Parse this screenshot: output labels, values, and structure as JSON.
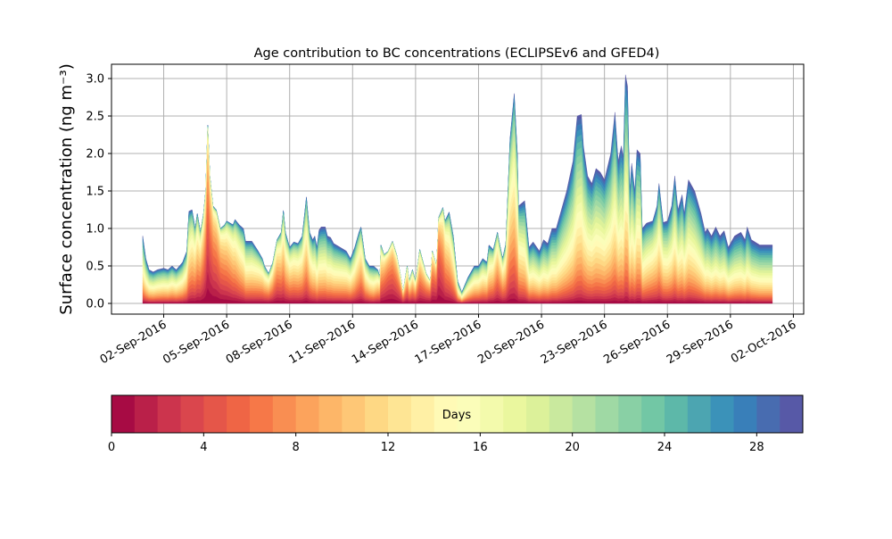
{
  "chart_data": {
    "type": "area",
    "stacked": true,
    "title": "Age contribution to BC concentrations (ECLIPSEv6 and GFED4)",
    "ylabel": "Surface concentration (ng m⁻³)",
    "xlabel": "",
    "x_units": "days since 01-Sep-2016 00:00",
    "xlim": [
      -1.5,
      31.3
    ],
    "ylim": [
      -0.15,
      3.2
    ],
    "yticks": [
      0.0,
      0.5,
      1.0,
      1.5,
      2.0,
      2.5,
      3.0
    ],
    "ytick_labels": [
      "0.0",
      "0.5",
      "1.0",
      "1.5",
      "2.0",
      "2.5",
      "3.0"
    ],
    "xticks": [
      1,
      4,
      7,
      10,
      13,
      16,
      19,
      22,
      25,
      28,
      31
    ],
    "xtick_labels": [
      "02-Sep-2016",
      "05-Sep-2016",
      "08-Sep-2016",
      "11-Sep-2016",
      "14-Sep-2016",
      "17-Sep-2016",
      "20-Sep-2016",
      "23-Sep-2016",
      "26-Sep-2016",
      "29-Sep-2016",
      "02-Oct-2016"
    ],
    "grid": true,
    "series_note": "30 stacked age classes (0-29 days), Spectral colormap",
    "n_age_classes": 30,
    "total": [
      [
        0,
        0.9
      ],
      [
        0.15,
        0.6
      ],
      [
        0.3,
        0.45
      ],
      [
        0.5,
        0.42
      ],
      [
        0.7,
        0.45
      ],
      [
        1.0,
        0.47
      ],
      [
        1.2,
        0.45
      ],
      [
        1.4,
        0.5
      ],
      [
        1.6,
        0.45
      ],
      [
        1.9,
        0.55
      ],
      [
        2.1,
        0.7
      ],
      [
        2.2,
        1.23
      ],
      [
        2.35,
        1.25
      ],
      [
        2.5,
        1.0
      ],
      [
        2.6,
        1.2
      ],
      [
        2.75,
        0.95
      ],
      [
        2.9,
        1.2
      ],
      [
        3.0,
        1.5
      ],
      [
        3.1,
        2.38
      ],
      [
        3.2,
        1.7
      ],
      [
        3.35,
        1.3
      ],
      [
        3.5,
        1.25
      ],
      [
        3.7,
        1.0
      ],
      [
        3.9,
        1.05
      ],
      [
        4.0,
        1.1
      ],
      [
        4.3,
        1.05
      ],
      [
        4.4,
        1.12
      ],
      [
        4.6,
        1.05
      ],
      [
        4.8,
        1.0
      ],
      [
        4.9,
        0.83
      ],
      [
        5.2,
        0.83
      ],
      [
        5.5,
        0.7
      ],
      [
        5.7,
        0.6
      ],
      [
        5.8,
        0.5
      ],
      [
        6.0,
        0.4
      ],
      [
        6.2,
        0.55
      ],
      [
        6.4,
        0.85
      ],
      [
        6.6,
        0.95
      ],
      [
        6.7,
        1.24
      ],
      [
        6.8,
        0.95
      ],
      [
        7.0,
        0.75
      ],
      [
        7.2,
        0.82
      ],
      [
        7.4,
        0.8
      ],
      [
        7.6,
        0.9
      ],
      [
        7.8,
        1.42
      ],
      [
        7.95,
        0.95
      ],
      [
        8.1,
        0.85
      ],
      [
        8.2,
        0.9
      ],
      [
        8.3,
        0.75
      ],
      [
        8.4,
        0.98
      ],
      [
        8.5,
        1.02
      ],
      [
        8.7,
        1.02
      ],
      [
        8.8,
        0.9
      ],
      [
        8.95,
        0.88
      ],
      [
        9.1,
        0.8
      ],
      [
        9.4,
        0.75
      ],
      [
        9.7,
        0.7
      ],
      [
        9.9,
        0.6
      ],
      [
        10.1,
        0.75
      ],
      [
        10.3,
        0.95
      ],
      [
        10.4,
        1.02
      ],
      [
        10.6,
        0.6
      ],
      [
        10.8,
        0.5
      ],
      [
        11.0,
        0.5
      ],
      [
        11.2,
        0.45
      ],
      [
        11.3,
        0.35
      ],
      [
        11.35,
        0.78
      ],
      [
        11.5,
        0.65
      ],
      [
        11.7,
        0.7
      ],
      [
        11.9,
        0.83
      ],
      [
        12.1,
        0.65
      ],
      [
        12.3,
        0.35
      ],
      [
        12.4,
        0.15
      ],
      [
        12.6,
        0.5
      ],
      [
        12.7,
        0.3
      ],
      [
        12.85,
        0.45
      ],
      [
        13.0,
        0.3
      ],
      [
        13.2,
        0.72
      ],
      [
        13.5,
        0.4
      ],
      [
        13.7,
        0.3
      ],
      [
        13.8,
        0.7
      ],
      [
        14.0,
        0.5
      ],
      [
        14.1,
        1.15
      ],
      [
        14.3,
        1.28
      ],
      [
        14.4,
        1.1
      ],
      [
        14.6,
        1.22
      ],
      [
        14.8,
        0.9
      ],
      [
        15.0,
        0.3
      ],
      [
        15.2,
        0.15
      ],
      [
        15.5,
        0.35
      ],
      [
        15.8,
        0.5
      ],
      [
        16.0,
        0.5
      ],
      [
        16.2,
        0.6
      ],
      [
        16.4,
        0.55
      ],
      [
        16.5,
        0.78
      ],
      [
        16.7,
        0.72
      ],
      [
        16.9,
        0.95
      ],
      [
        17.0,
        0.8
      ],
      [
        17.15,
        0.6
      ],
      [
        17.3,
        0.8
      ],
      [
        17.5,
        2.2
      ],
      [
        17.7,
        2.8
      ],
      [
        17.85,
        2.0
      ],
      [
        17.9,
        1.3
      ],
      [
        18.2,
        1.37
      ],
      [
        18.4,
        0.75
      ],
      [
        18.6,
        0.82
      ],
      [
        18.9,
        0.7
      ],
      [
        19.1,
        0.85
      ],
      [
        19.3,
        0.8
      ],
      [
        19.5,
        1.0
      ],
      [
        19.7,
        1.0
      ],
      [
        19.9,
        1.2
      ],
      [
        20.2,
        1.5
      ],
      [
        20.5,
        1.9
      ],
      [
        20.7,
        2.5
      ],
      [
        20.9,
        2.52
      ],
      [
        21.0,
        2.1
      ],
      [
        21.2,
        1.7
      ],
      [
        21.4,
        1.6
      ],
      [
        21.6,
        1.8
      ],
      [
        21.8,
        1.75
      ],
      [
        22.0,
        1.65
      ],
      [
        22.3,
        2.0
      ],
      [
        22.5,
        2.55
      ],
      [
        22.65,
        1.9
      ],
      [
        22.8,
        2.1
      ],
      [
        22.9,
        1.95
      ],
      [
        23.0,
        3.05
      ],
      [
        23.1,
        2.9
      ],
      [
        23.2,
        1.5
      ],
      [
        23.3,
        1.87
      ],
      [
        23.45,
        1.5
      ],
      [
        23.55,
        2.05
      ],
      [
        23.7,
        2.0
      ],
      [
        23.8,
        1.0
      ],
      [
        24.0,
        1.07
      ],
      [
        24.3,
        1.1
      ],
      [
        24.5,
        1.3
      ],
      [
        24.6,
        1.6
      ],
      [
        24.8,
        1.08
      ],
      [
        25.0,
        1.1
      ],
      [
        25.2,
        1.3
      ],
      [
        25.35,
        1.7
      ],
      [
        25.5,
        1.25
      ],
      [
        25.7,
        1.45
      ],
      [
        25.8,
        1.2
      ],
      [
        26.0,
        1.65
      ],
      [
        26.3,
        1.5
      ],
      [
        26.6,
        1.2
      ],
      [
        26.8,
        0.95
      ],
      [
        26.9,
        1.0
      ],
      [
        27.1,
        0.9
      ],
      [
        27.3,
        1.02
      ],
      [
        27.5,
        0.9
      ],
      [
        27.7,
        0.97
      ],
      [
        27.9,
        0.75
      ],
      [
        28.2,
        0.9
      ],
      [
        28.5,
        0.95
      ],
      [
        28.7,
        0.85
      ],
      [
        28.8,
        1.02
      ],
      [
        29.0,
        0.85
      ],
      [
        29.4,
        0.78
      ],
      [
        30.0,
        0.78
      ]
    ],
    "mean_age_anchors": [
      [
        0,
        16
      ],
      [
        2.0,
        14
      ],
      [
        2.9,
        6
      ],
      [
        3.1,
        3
      ],
      [
        3.5,
        4
      ],
      [
        4.2,
        8
      ],
      [
        5.0,
        14
      ],
      [
        6.4,
        7
      ],
      [
        6.8,
        10
      ],
      [
        7.8,
        11
      ],
      [
        8.5,
        16
      ],
      [
        10.0,
        13
      ],
      [
        10.4,
        10
      ],
      [
        11.0,
        14
      ],
      [
        11.6,
        3
      ],
      [
        12.3,
        5
      ],
      [
        12.8,
        8
      ],
      [
        13.8,
        4
      ],
      [
        14.1,
        2
      ],
      [
        14.5,
        9
      ],
      [
        15.2,
        14
      ],
      [
        16.5,
        12
      ],
      [
        16.9,
        8
      ],
      [
        17.7,
        12
      ],
      [
        18.3,
        16
      ],
      [
        19.5,
        18
      ],
      [
        20.5,
        18
      ],
      [
        21.3,
        16
      ],
      [
        23.0,
        17
      ],
      [
        23.7,
        16
      ],
      [
        24.3,
        13
      ],
      [
        25.3,
        16
      ],
      [
        27.0,
        19
      ],
      [
        30.0,
        20
      ]
    ],
    "colorbar": {
      "label": "Days",
      "range": [
        0,
        30
      ],
      "ticks": [
        0,
        4,
        8,
        12,
        16,
        20,
        24,
        28
      ],
      "tick_labels": [
        "0",
        "4",
        "8",
        "12",
        "16",
        "20",
        "24",
        "28"
      ],
      "colormap_stops": [
        "#9e0142",
        "#d53e4f",
        "#f46d43",
        "#fdae61",
        "#fee08b",
        "#ffffbf",
        "#e6f598",
        "#abdda4",
        "#66c2a5",
        "#3288bd",
        "#5e4fa2"
      ]
    }
  }
}
